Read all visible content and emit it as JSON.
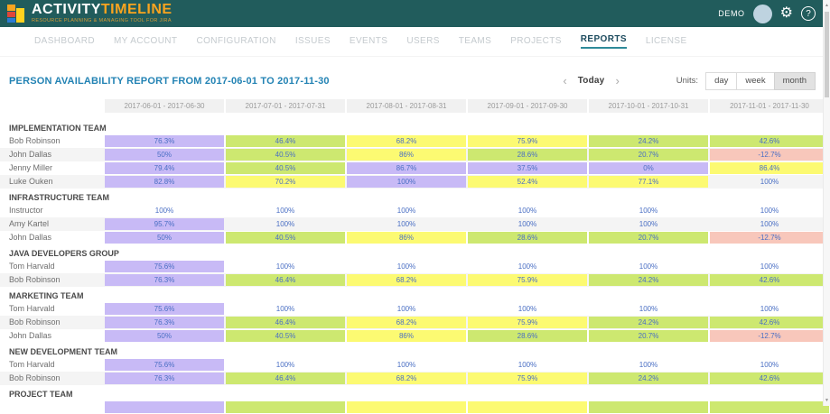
{
  "app": {
    "logo_primary": "ACTIVITY",
    "logo_secondary": "TIMELINE",
    "logo_subtitle": "RESOURCE PLANNING & MANAGING TOOL FOR JIRA",
    "user_label": "DEMO",
    "icons": {
      "gear": "⚙",
      "help": "?",
      "scroll_up": "▲",
      "scroll_down": "▼"
    }
  },
  "nav": {
    "items": [
      {
        "label": "DASHBOARD",
        "active": false
      },
      {
        "label": "MY ACCOUNT",
        "active": false
      },
      {
        "label": "CONFIGURATION",
        "active": false
      },
      {
        "label": "ISSUES",
        "active": false
      },
      {
        "label": "EVENTS",
        "active": false
      },
      {
        "label": "USERS",
        "active": false
      },
      {
        "label": "TEAMS",
        "active": false
      },
      {
        "label": "PROJECTS",
        "active": false
      },
      {
        "label": "REPORTS",
        "active": true
      },
      {
        "label": "LICENSE",
        "active": false
      }
    ]
  },
  "report": {
    "title": "PERSON AVAILABILITY REPORT FROM 2017-06-01 TO 2017-11-30",
    "period_nav": {
      "prev_icon": "‹",
      "today_label": "Today",
      "next_icon": "›"
    },
    "units": {
      "label": "Units:",
      "options": [
        "day",
        "week",
        "month"
      ],
      "selected": "month"
    }
  },
  "colors": {
    "purple": "#C8BAF6",
    "green": "#CDE870",
    "yellow": "#FCFA72",
    "pink": "#F8C7BB",
    "none": "transparent",
    "header_teal": "#215C5C",
    "accent_orange": "#F9A41F",
    "title_blue": "#2383B4",
    "active_tab_underline": "#2E8A99",
    "cell_text": "#4A6FC4"
  },
  "table": {
    "columns": [
      "2017-06-01 - 2017-06-30",
      "2017-07-01 - 2017-07-31",
      "2017-08-01 - 2017-08-31",
      "2017-09-01 - 2017-09-30",
      "2017-10-01 - 2017-10-31",
      "2017-11-01 - 2017-11-30"
    ],
    "teams": [
      {
        "name": "IMPLEMENTATION TEAM",
        "members": [
          {
            "name": "Bob Robinson",
            "cells": [
              {
                "value": "76.3%",
                "color": "purple"
              },
              {
                "value": "46.4%",
                "color": "green"
              },
              {
                "value": "68.2%",
                "color": "yellow"
              },
              {
                "value": "75.9%",
                "color": "yellow"
              },
              {
                "value": "24.2%",
                "color": "green"
              },
              {
                "value": "42.6%",
                "color": "green"
              }
            ]
          },
          {
            "name": "John Dallas",
            "cells": [
              {
                "value": "50%",
                "color": "purple"
              },
              {
                "value": "40.5%",
                "color": "green"
              },
              {
                "value": "86%",
                "color": "yellow"
              },
              {
                "value": "28.6%",
                "color": "green"
              },
              {
                "value": "20.7%",
                "color": "green"
              },
              {
                "value": "-12.7%",
                "color": "pink"
              }
            ]
          },
          {
            "name": "Jenny Miller",
            "cells": [
              {
                "value": "79.4%",
                "color": "purple"
              },
              {
                "value": "40.5%",
                "color": "green"
              },
              {
                "value": "86.7%",
                "color": "purple"
              },
              {
                "value": "37.5%",
                "color": "purple"
              },
              {
                "value": "0%",
                "color": "purple"
              },
              {
                "value": "86.4%",
                "color": "yellow"
              }
            ]
          },
          {
            "name": "Luke Ouken",
            "cells": [
              {
                "value": "82.8%",
                "color": "purple"
              },
              {
                "value": "70.2%",
                "color": "yellow"
              },
              {
                "value": "100%",
                "color": "purple"
              },
              {
                "value": "52.4%",
                "color": "yellow"
              },
              {
                "value": "77.1%",
                "color": "yellow"
              },
              {
                "value": "100%",
                "color": "none"
              }
            ]
          }
        ]
      },
      {
        "name": "INFRASTRUCTURE TEAM",
        "members": [
          {
            "name": "Instructor",
            "cells": [
              {
                "value": "100%",
                "color": "none"
              },
              {
                "value": "100%",
                "color": "none"
              },
              {
                "value": "100%",
                "color": "none"
              },
              {
                "value": "100%",
                "color": "none"
              },
              {
                "value": "100%",
                "color": "none"
              },
              {
                "value": "100%",
                "color": "none"
              }
            ]
          },
          {
            "name": "Amy Kartel",
            "cells": [
              {
                "value": "95.7%",
                "color": "purple"
              },
              {
                "value": "100%",
                "color": "none"
              },
              {
                "value": "100%",
                "color": "none"
              },
              {
                "value": "100%",
                "color": "none"
              },
              {
                "value": "100%",
                "color": "none"
              },
              {
                "value": "100%",
                "color": "none"
              }
            ]
          },
          {
            "name": "John Dallas",
            "cells": [
              {
                "value": "50%",
                "color": "purple"
              },
              {
                "value": "40.5%",
                "color": "green"
              },
              {
                "value": "86%",
                "color": "yellow"
              },
              {
                "value": "28.6%",
                "color": "green"
              },
              {
                "value": "20.7%",
                "color": "green"
              },
              {
                "value": "-12.7%",
                "color": "pink"
              }
            ]
          }
        ]
      },
      {
        "name": "JAVA DEVELOPERS GROUP",
        "members": [
          {
            "name": "Tom Harvald",
            "cells": [
              {
                "value": "75.6%",
                "color": "purple"
              },
              {
                "value": "100%",
                "color": "none"
              },
              {
                "value": "100%",
                "color": "none"
              },
              {
                "value": "100%",
                "color": "none"
              },
              {
                "value": "100%",
                "color": "none"
              },
              {
                "value": "100%",
                "color": "none"
              }
            ]
          },
          {
            "name": "Bob Robinson",
            "cells": [
              {
                "value": "76.3%",
                "color": "purple"
              },
              {
                "value": "46.4%",
                "color": "green"
              },
              {
                "value": "68.2%",
                "color": "yellow"
              },
              {
                "value": "75.9%",
                "color": "yellow"
              },
              {
                "value": "24.2%",
                "color": "green"
              },
              {
                "value": "42.6%",
                "color": "green"
              }
            ]
          }
        ]
      },
      {
        "name": "MARKETING TEAM",
        "members": [
          {
            "name": "Tom Harvald",
            "cells": [
              {
                "value": "75.6%",
                "color": "purple"
              },
              {
                "value": "100%",
                "color": "none"
              },
              {
                "value": "100%",
                "color": "none"
              },
              {
                "value": "100%",
                "color": "none"
              },
              {
                "value": "100%",
                "color": "none"
              },
              {
                "value": "100%",
                "color": "none"
              }
            ]
          },
          {
            "name": "Bob Robinson",
            "cells": [
              {
                "value": "76.3%",
                "color": "purple"
              },
              {
                "value": "46.4%",
                "color": "green"
              },
              {
                "value": "68.2%",
                "color": "yellow"
              },
              {
                "value": "75.9%",
                "color": "yellow"
              },
              {
                "value": "24.2%",
                "color": "green"
              },
              {
                "value": "42.6%",
                "color": "green"
              }
            ]
          },
          {
            "name": "John Dallas",
            "cells": [
              {
                "value": "50%",
                "color": "purple"
              },
              {
                "value": "40.5%",
                "color": "green"
              },
              {
                "value": "86%",
                "color": "yellow"
              },
              {
                "value": "28.6%",
                "color": "green"
              },
              {
                "value": "20.7%",
                "color": "green"
              },
              {
                "value": "-12.7%",
                "color": "pink"
              }
            ]
          }
        ]
      },
      {
        "name": "NEW DEVELOPMENT TEAM",
        "members": [
          {
            "name": "Tom Harvald",
            "cells": [
              {
                "value": "75.6%",
                "color": "purple"
              },
              {
                "value": "100%",
                "color": "none"
              },
              {
                "value": "100%",
                "color": "none"
              },
              {
                "value": "100%",
                "color": "none"
              },
              {
                "value": "100%",
                "color": "none"
              },
              {
                "value": "100%",
                "color": "none"
              }
            ]
          },
          {
            "name": "Bob Robinson",
            "cells": [
              {
                "value": "76.3%",
                "color": "purple"
              },
              {
                "value": "46.4%",
                "color": "green"
              },
              {
                "value": "68.2%",
                "color": "yellow"
              },
              {
                "value": "75.9%",
                "color": "yellow"
              },
              {
                "value": "24.2%",
                "color": "green"
              },
              {
                "value": "42.6%",
                "color": "green"
              }
            ]
          }
        ]
      },
      {
        "name": "PROJECT TEAM",
        "members": [
          {
            "name": "",
            "cells": [
              {
                "value": "",
                "color": "purple"
              },
              {
                "value": "",
                "color": "green"
              },
              {
                "value": "",
                "color": "yellow"
              },
              {
                "value": "",
                "color": "yellow"
              },
              {
                "value": "",
                "color": "green"
              },
              {
                "value": "",
                "color": "green"
              }
            ]
          }
        ]
      }
    ]
  }
}
